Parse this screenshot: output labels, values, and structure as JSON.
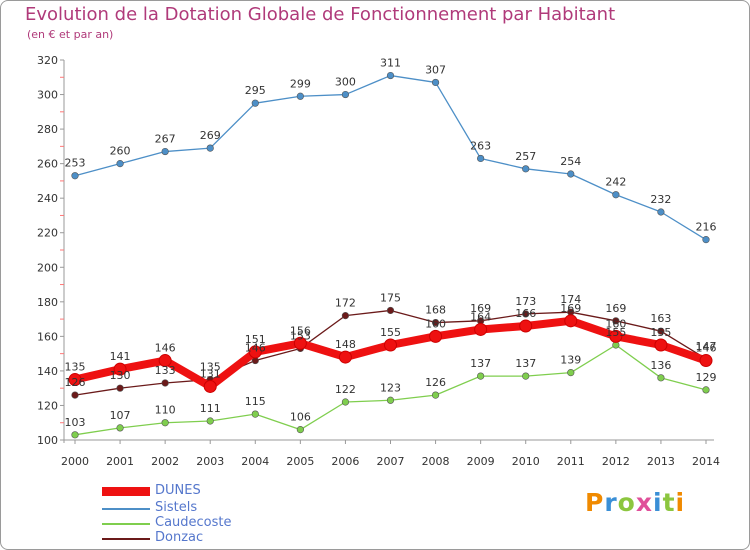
{
  "header": {
    "title": "Evolution de la Dotation Globale de Fonctionnement par Habitant",
    "subtitle": "(en € et par an)"
  },
  "logo": {
    "text": "Proxiti",
    "colors": [
      "#f08a00",
      "#3a8fd6",
      "#8cc63f",
      "#e0509a",
      "#3a8fd6",
      "#8cc63f",
      "#f08a00"
    ]
  },
  "chart_data": {
    "type": "line",
    "title": "Evolution de la Dotation Globale de Fonctionnement par Habitant",
    "subtitle": "(en € et par an)",
    "x": [
      2000,
      2001,
      2002,
      2003,
      2004,
      2005,
      2006,
      2007,
      2008,
      2009,
      2010,
      2011,
      2012,
      2013,
      2014
    ],
    "ylim": [
      100,
      320
    ],
    "yticks": [
      100,
      120,
      140,
      160,
      180,
      200,
      220,
      240,
      260,
      280,
      300,
      320
    ],
    "grid": false,
    "legend_position": "bottom-left",
    "series": [
      {
        "name": "Donzac",
        "color": "#6b1a1a",
        "values": [
          126,
          130,
          133,
          135,
          146,
          153,
          172,
          175,
          168,
          169,
          173,
          174,
          169,
          163,
          147
        ]
      },
      {
        "name": "Caudecoste",
        "color": "#7fce4e",
        "values": [
          103,
          107,
          110,
          111,
          115,
          106,
          122,
          123,
          126,
          137,
          137,
          139,
          155,
          136,
          129
        ]
      },
      {
        "name": "Sistels",
        "color": "#4d8fc7",
        "values": [
          253,
          260,
          267,
          269,
          295,
          299,
          300,
          311,
          307,
          263,
          257,
          254,
          242,
          232,
          216
        ]
      },
      {
        "name": "DUNES",
        "color": "#ee1111",
        "values": [
          135,
          141,
          146,
          131,
          151,
          156,
          148,
          155,
          160,
          164,
          166,
          169,
          160,
          155,
          146
        ]
      }
    ],
    "legend": [
      "DUNES",
      "Sistels",
      "Caudecoste",
      "Donzac"
    ]
  }
}
